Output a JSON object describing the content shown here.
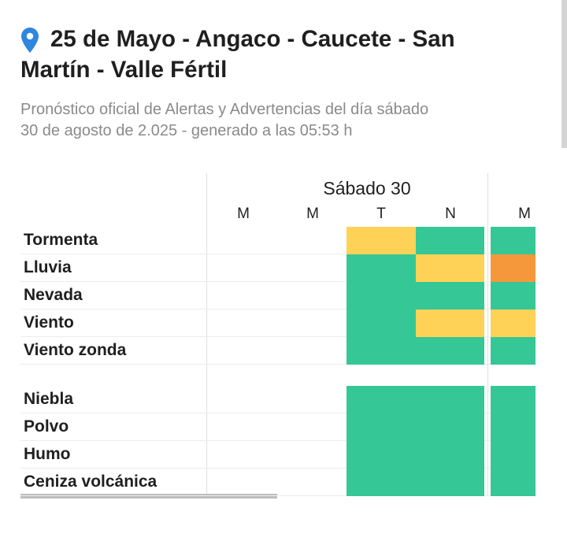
{
  "header": {
    "location_icon": "location-pin-icon",
    "title_line1": "25 de Mayo - Angaco - Caucete - San",
    "title_line2": "Martín - Valle Fértil",
    "subtitle_line1": "Pronóstico oficial de Alertas y Advertencias del día sábado",
    "subtitle_line2": "30 de agosto de 2.025 - generado a las 05:53 h"
  },
  "colors": {
    "green": "#35c795",
    "yellow": "#fdd257",
    "orange": "#f5973b",
    "accent_pin": "#2e86de"
  },
  "table": {
    "day": "Sábado 30",
    "columns": [
      "M",
      "M",
      "T",
      "N",
      "M"
    ],
    "group1": [
      {
        "label": "Tormenta",
        "levels": [
          "",
          "",
          "yellow",
          "green",
          "green"
        ]
      },
      {
        "label": "Lluvia",
        "levels": [
          "",
          "",
          "green",
          "yellow",
          "orange"
        ]
      },
      {
        "label": "Nevada",
        "levels": [
          "",
          "",
          "green",
          "green",
          "green"
        ]
      },
      {
        "label": "Viento",
        "levels": [
          "",
          "",
          "green",
          "yellow",
          "yellow"
        ]
      },
      {
        "label": "Viento zonda",
        "levels": [
          "",
          "",
          "green",
          "green",
          "green"
        ]
      }
    ],
    "group2": [
      {
        "label": "Niebla",
        "levels": [
          "",
          "",
          "green",
          "green",
          "green"
        ]
      },
      {
        "label": "Polvo",
        "levels": [
          "",
          "",
          "green",
          "green",
          "green"
        ]
      },
      {
        "label": "Humo",
        "levels": [
          "",
          "",
          "green",
          "green",
          "green"
        ]
      },
      {
        "label": "Ceniza volcánica",
        "levels": [
          "",
          "",
          "green",
          "green",
          "green"
        ]
      }
    ]
  }
}
